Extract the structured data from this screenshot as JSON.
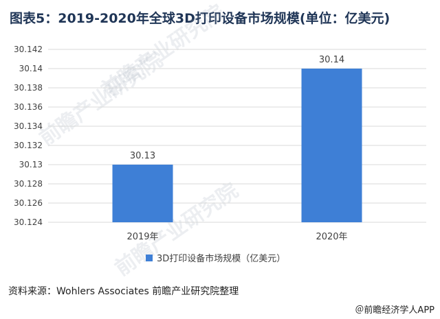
{
  "title": "图表5：2019-2020年全球3D打印设备市场规模(单位：亿美元)",
  "source": "资料来源：Wohlers Associates 前瞻产业研究院整理",
  "brand": "＠前瞻经济学人APP",
  "watermark": "前瞻产业研究院",
  "colors": {
    "bar": "#3e7fd6",
    "grid": "#d9d9d9",
    "title": "#1f3556"
  },
  "chart_data": {
    "type": "bar",
    "title": "图表5：2019-2020年全球3D打印设备市场规模(单位：亿美元)",
    "categories": [
      "2019年",
      "2020年"
    ],
    "series": [
      {
        "name": "3D打印设备市场规模（亿美元）",
        "values": [
          30.13,
          30.14
        ]
      }
    ],
    "data_labels": [
      "30.13",
      "30.14"
    ],
    "ylim": [
      30.124,
      30.142
    ],
    "ytick_step": 0.002,
    "yticks": [
      "30.124",
      "30.126",
      "30.128",
      "30.13",
      "30.132",
      "30.134",
      "30.136",
      "30.138",
      "30.14",
      "30.142"
    ],
    "grid": true,
    "legend_position": "bottom"
  }
}
